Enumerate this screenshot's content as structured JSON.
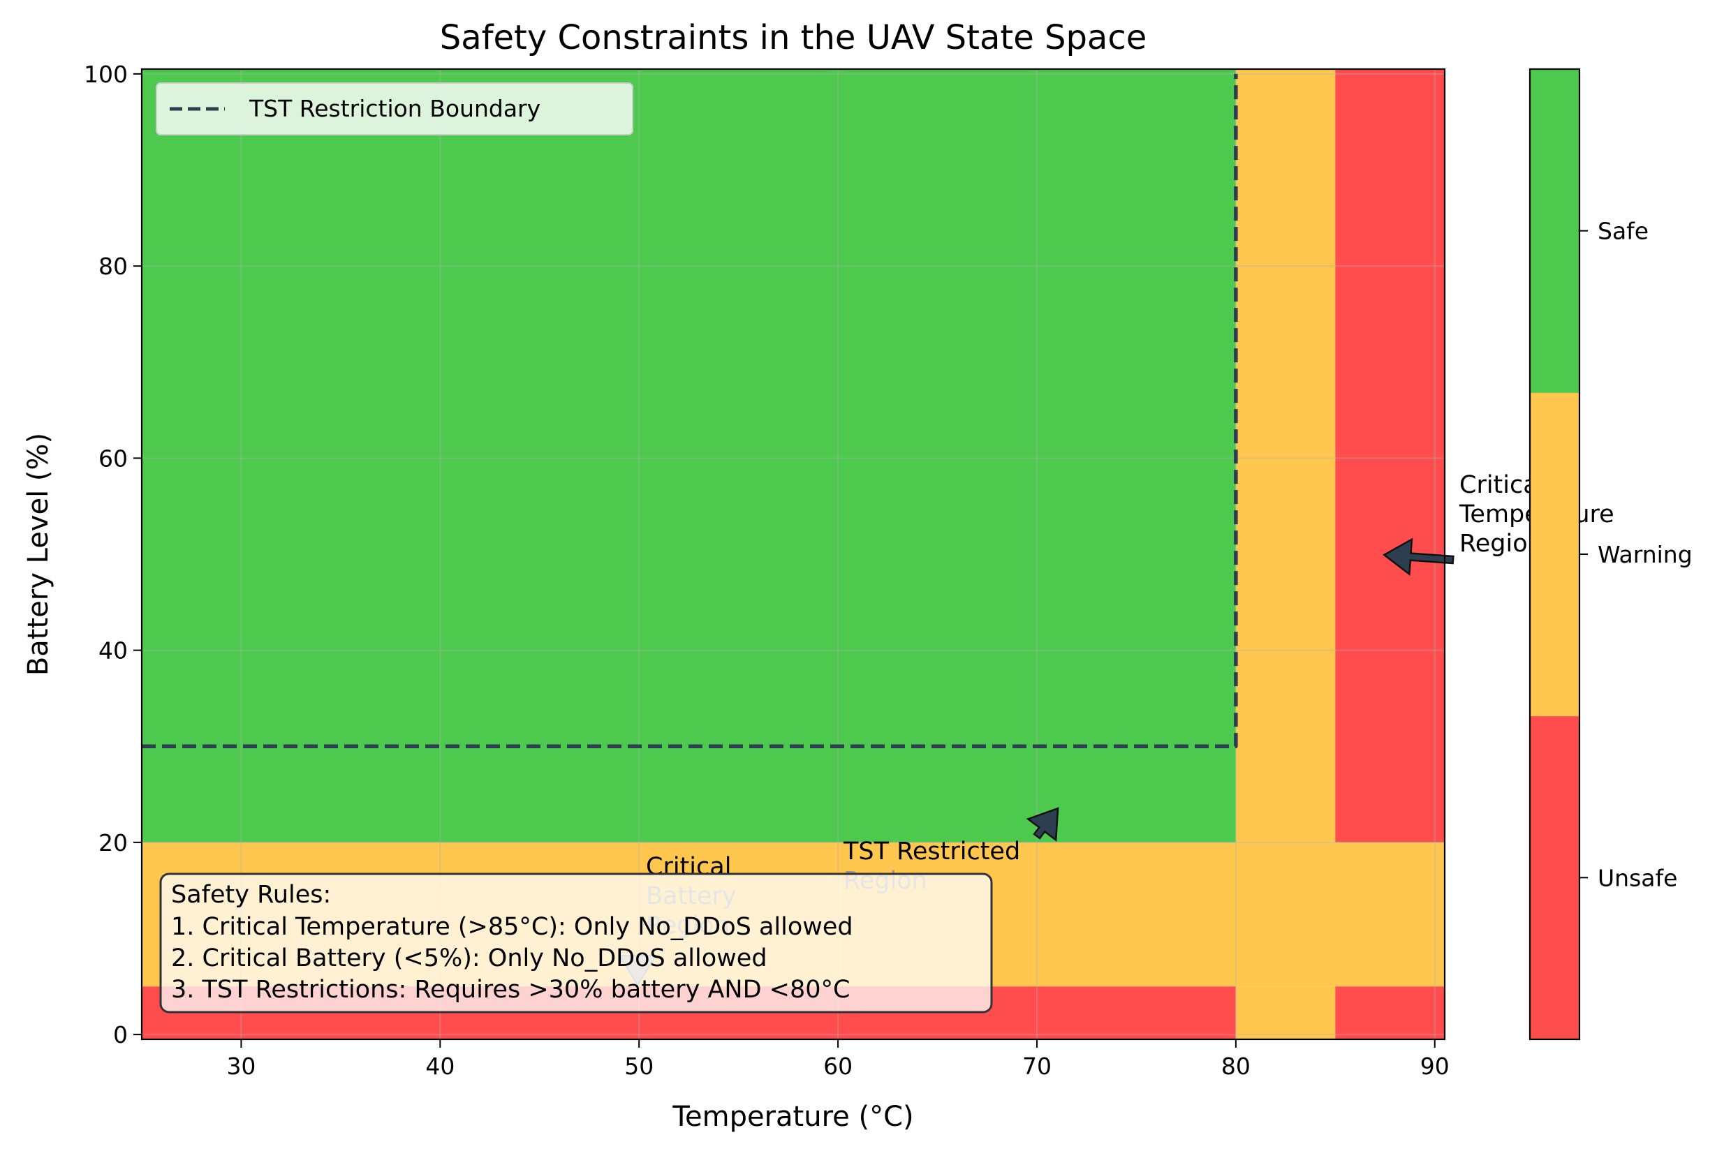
{
  "chart_data": {
    "type": "heatmap",
    "title": "Safety Constraints in the UAV State Space",
    "xlabel": "Temperature (°C)",
    "ylabel": "Battery Level (%)",
    "xlim": [
      25,
      90.5
    ],
    "ylim": [
      -0.5,
      100.5
    ],
    "xticks": [
      30,
      40,
      50,
      60,
      70,
      80,
      90
    ],
    "yticks": [
      0,
      20,
      40,
      60,
      80,
      100
    ],
    "grid": true,
    "legend_position": "top-left",
    "classes": [
      {
        "name": "Unsafe",
        "color": "#ff4d4d"
      },
      {
        "name": "Warning",
        "color": "#ffc74d"
      },
      {
        "name": "Safe",
        "color": "#4dc94d"
      }
    ],
    "regions": [
      {
        "x": [
          25,
          80
        ],
        "y": [
          20,
          100.5
        ],
        "class": "Safe"
      },
      {
        "x": [
          80,
          85
        ],
        "y": [
          20,
          100.5
        ],
        "class": "Warning"
      },
      {
        "x": [
          85,
          90.5
        ],
        "y": [
          20,
          100.5
        ],
        "class": "Unsafe"
      },
      {
        "x": [
          25,
          90.5
        ],
        "y": [
          5,
          20
        ],
        "class": "Warning"
      },
      {
        "x": [
          25,
          80
        ],
        "y": [
          -0.5,
          5
        ],
        "class": "Unsafe"
      },
      {
        "x": [
          80,
          85
        ],
        "y": [
          -0.5,
          5
        ],
        "class": "Warning"
      },
      {
        "x": [
          85,
          90.5
        ],
        "y": [
          -0.5,
          5
        ],
        "class": "Unsafe"
      }
    ],
    "boundary": {
      "name": "TST Restriction Boundary",
      "color": "#2c3e50",
      "points": [
        [
          25,
          30
        ],
        [
          80,
          30
        ],
        [
          80,
          100
        ]
      ]
    },
    "annotations": [
      {
        "text": "Critical\nTemperature\nRegion",
        "text_x": 90.5,
        "text_y": 55,
        "arrow_x": 87,
        "arrow_y": 50
      },
      {
        "text": "Critical\nBattery\nRegion",
        "text_x": 50,
        "text_y": 17,
        "arrow_x": 50,
        "arrow_y": 2.5
      },
      {
        "text": "TST Restricted\nRegion",
        "text_x": 60,
        "text_y": 18,
        "arrow_x": 70,
        "arrow_y": 25
      }
    ],
    "colorbar": {
      "ticks": [
        "Unsafe",
        "Warning",
        "Safe"
      ]
    }
  },
  "rules": {
    "heading": "Safety Rules:",
    "items": [
      "1. Critical Temperature (>85°C): Only No_DDoS allowed",
      "2. Critical Battery (<5%): Only No_DDoS allowed",
      "3. TST Restrictions: Requires >30% battery AND <80°C"
    ]
  }
}
